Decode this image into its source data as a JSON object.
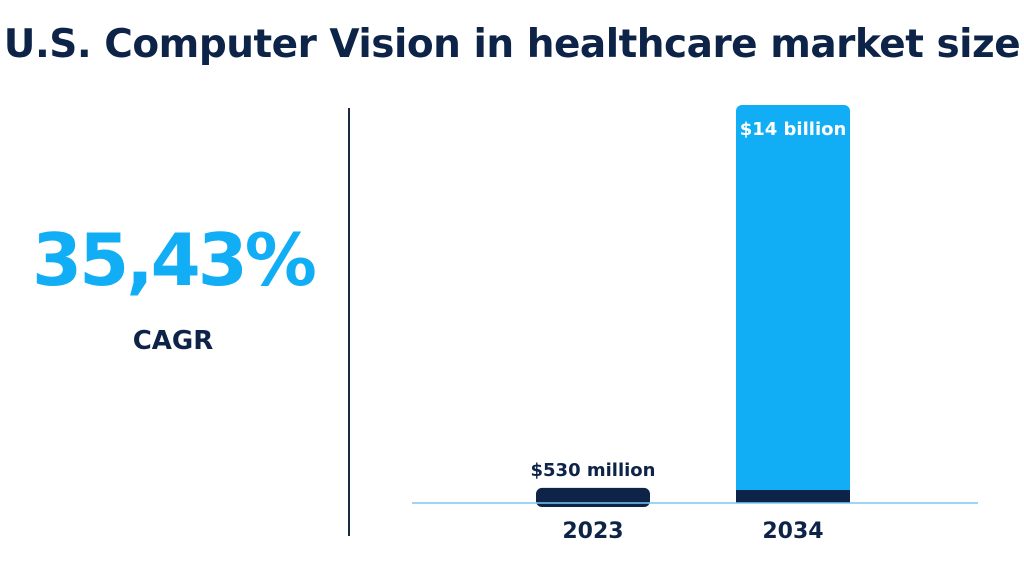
{
  "header": {
    "title": "U.S. Computer Vision in healthcare market size"
  },
  "kpi": {
    "value": "35,43%",
    "label": "CAGR"
  },
  "colors": {
    "accent": "#12aef5",
    "dark": "#0d2347",
    "baseline": "#7cc9f0"
  },
  "chart_data": {
    "type": "bar",
    "categories": [
      "2023",
      "2034"
    ],
    "values": [
      0.53,
      14
    ],
    "unit": "USD billion",
    "data_labels": [
      "$530 million",
      "$14 billion"
    ],
    "ylim": [
      0,
      14
    ],
    "grid": false,
    "legend": "none"
  }
}
